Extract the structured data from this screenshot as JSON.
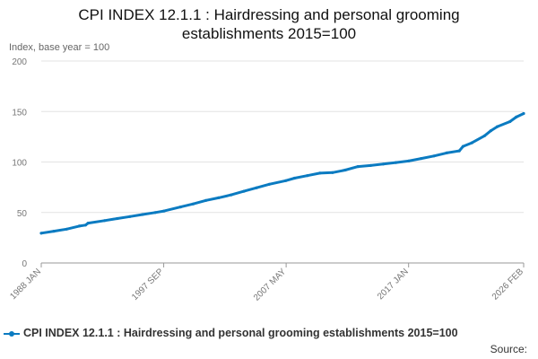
{
  "chart_data": {
    "type": "line",
    "title_line1": "CPI INDEX 12.1.1 : Hairdressing and personal grooming",
    "title_line2": "establishments 2015=100",
    "ylabel": "Index, base year = 100",
    "ylim": [
      0,
      200
    ],
    "yticks": [
      0,
      50,
      100,
      150,
      200
    ],
    "xlim": [
      1988.0,
      2026.083
    ],
    "xtick_labels": [
      "1988 JAN",
      "1997 SEP",
      "2007 MAY",
      "2017 JAN",
      "2026 FEB"
    ],
    "xtick_values": [
      1988.0,
      1997.667,
      2007.333,
      2017.0,
      2026.083
    ],
    "grid": true,
    "legend_position": "bottom",
    "source_label": "Source:",
    "series": [
      {
        "name": "CPI INDEX 12.1.1 : Hairdressing and personal grooming establishments 2015=100",
        "color": "#0b7bc1",
        "points": [
          [
            1988.0,
            29.5
          ],
          [
            1989.0,
            31.5
          ],
          [
            1990.0,
            33.5
          ],
          [
            1991.0,
            36.5
          ],
          [
            1991.5,
            37.5
          ],
          [
            1991.7,
            39.5
          ],
          [
            1993.0,
            42.0
          ],
          [
            1994.0,
            44.0
          ],
          [
            1995.0,
            46.0
          ],
          [
            1996.0,
            48.0
          ],
          [
            1997.0,
            50.0
          ],
          [
            1997.7,
            51.5
          ],
          [
            1999.0,
            55.5
          ],
          [
            2000.0,
            58.5
          ],
          [
            2001.0,
            62.0
          ],
          [
            2002.0,
            64.5
          ],
          [
            2003.0,
            67.5
          ],
          [
            2004.0,
            71.0
          ],
          [
            2005.0,
            74.5
          ],
          [
            2006.0,
            78.0
          ],
          [
            2007.3,
            81.5
          ],
          [
            2008.0,
            84.0
          ],
          [
            2009.0,
            86.5
          ],
          [
            2010.0,
            89.0
          ],
          [
            2011.0,
            89.5
          ],
          [
            2012.0,
            92.0
          ],
          [
            2013.0,
            95.5
          ],
          [
            2014.0,
            96.5
          ],
          [
            2015.0,
            98.0
          ],
          [
            2016.0,
            99.5
          ],
          [
            2017.0,
            101.0
          ],
          [
            2018.0,
            103.5
          ],
          [
            2019.0,
            106.0
          ],
          [
            2020.0,
            109.0
          ],
          [
            2021.0,
            111.0
          ],
          [
            2021.3,
            115.5
          ],
          [
            2022.0,
            119.0
          ],
          [
            2023.0,
            126.0
          ],
          [
            2023.5,
            131.0
          ],
          [
            2024.0,
            135.0
          ],
          [
            2025.0,
            140.0
          ],
          [
            2025.5,
            144.5
          ],
          [
            2026.083,
            148.0
          ]
        ]
      }
    ]
  }
}
